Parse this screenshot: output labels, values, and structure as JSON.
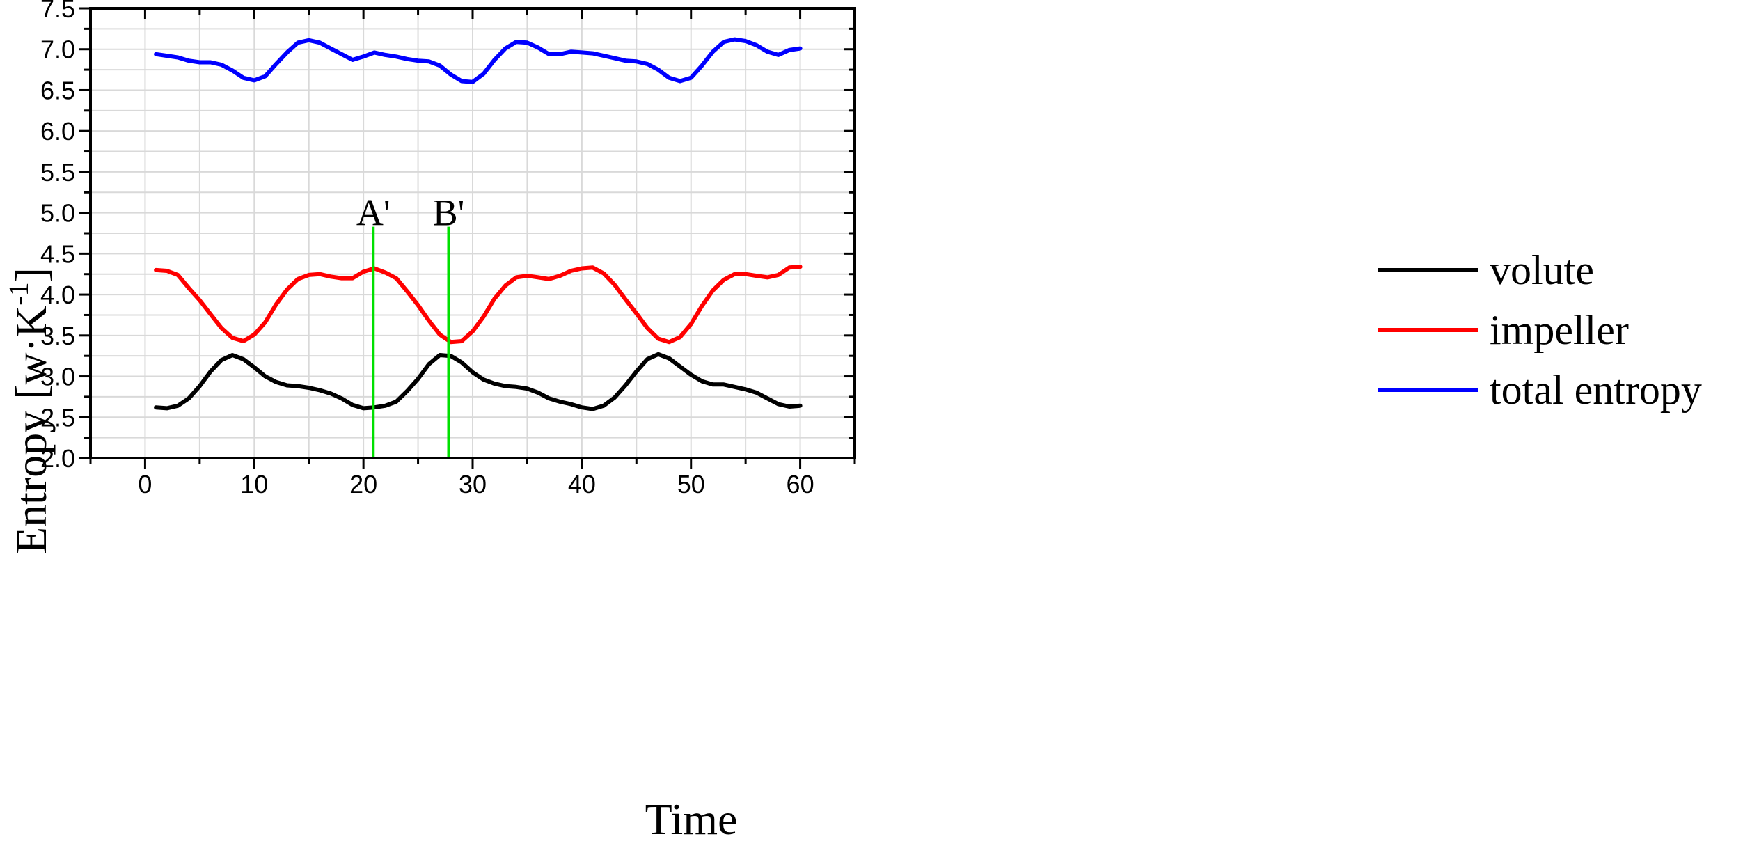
{
  "chart_data": {
    "type": "line",
    "title": "",
    "xlabel": "Time",
    "ylabel": "Entropy [w·K",
    "ylabel_sup": "-1",
    "ylabel_close": "]",
    "xlim": [
      -5,
      65
    ],
    "ylim": [
      2.0,
      7.5
    ],
    "xticks": [
      0,
      10,
      20,
      30,
      40,
      50,
      60
    ],
    "yticks": [
      2.0,
      2.5,
      3.0,
      3.5,
      4.0,
      4.5,
      5.0,
      5.5,
      6.0,
      6.5,
      7.0,
      7.5
    ],
    "xtick_labels": [
      "0",
      "10",
      "20",
      "30",
      "40",
      "50",
      "60"
    ],
    "ytick_labels": [
      "2.0",
      "2.5",
      "3.0",
      "3.5",
      "4.0",
      "4.5",
      "5.0",
      "5.5",
      "6.0",
      "6.5",
      "7.0",
      "7.5"
    ],
    "grid": true,
    "legend_position": "right",
    "x": [
      1,
      2,
      3,
      4,
      5,
      6,
      7,
      8,
      9,
      10,
      11,
      12,
      13,
      14,
      15,
      16,
      17,
      18,
      19,
      20,
      21,
      22,
      23,
      24,
      25,
      26,
      27,
      28,
      29,
      30,
      31,
      32,
      33,
      34,
      35,
      36,
      37,
      38,
      39,
      40,
      41,
      42,
      43,
      44,
      45,
      46,
      47,
      48,
      49,
      50,
      51,
      52,
      53,
      54,
      55,
      56,
      57,
      58,
      59,
      60
    ],
    "series": [
      {
        "name": "volute",
        "color": "#000000",
        "values": [
          2.62,
          2.61,
          2.64,
          2.73,
          2.88,
          3.06,
          3.2,
          3.26,
          3.21,
          3.11,
          3.0,
          2.93,
          2.89,
          2.88,
          2.86,
          2.83,
          2.79,
          2.73,
          2.65,
          2.61,
          2.62,
          2.64,
          2.69,
          2.82,
          2.97,
          3.15,
          3.26,
          3.25,
          3.17,
          3.05,
          2.96,
          2.91,
          2.88,
          2.87,
          2.85,
          2.8,
          2.73,
          2.69,
          2.66,
          2.62,
          2.6,
          2.64,
          2.74,
          2.89,
          3.06,
          3.21,
          3.27,
          3.22,
          3.12,
          3.02,
          2.94,
          2.9,
          2.9,
          2.87,
          2.84,
          2.8,
          2.73,
          2.66,
          2.63,
          2.64
        ]
      },
      {
        "name": "impeller",
        "color": "#ff0000",
        "values": [
          4.3,
          4.29,
          4.24,
          4.08,
          3.93,
          3.76,
          3.59,
          3.47,
          3.43,
          3.51,
          3.66,
          3.88,
          4.06,
          4.19,
          4.24,
          4.25,
          4.22,
          4.2,
          4.2,
          4.28,
          4.32,
          4.27,
          4.2,
          4.04,
          3.87,
          3.68,
          3.51,
          3.42,
          3.43,
          3.55,
          3.73,
          3.95,
          4.11,
          4.21,
          4.23,
          4.21,
          4.19,
          4.23,
          4.29,
          4.32,
          4.33,
          4.26,
          4.12,
          3.94,
          3.77,
          3.59,
          3.46,
          3.42,
          3.48,
          3.64,
          3.86,
          4.05,
          4.18,
          4.25,
          4.25,
          4.23,
          4.21,
          4.24,
          4.33,
          4.34
        ]
      },
      {
        "name": "total entropy",
        "color": "#0000ff",
        "values": [
          6.94,
          6.92,
          6.9,
          6.86,
          6.84,
          6.84,
          6.81,
          6.74,
          6.65,
          6.62,
          6.67,
          6.82,
          6.96,
          7.08,
          7.11,
          7.08,
          7.01,
          6.94,
          6.87,
          6.91,
          6.96,
          6.93,
          6.91,
          6.88,
          6.86,
          6.85,
          6.8,
          6.69,
          6.61,
          6.6,
          6.7,
          6.87,
          7.01,
          7.09,
          7.08,
          7.02,
          6.94,
          6.94,
          6.97,
          6.96,
          6.95,
          6.92,
          6.89,
          6.86,
          6.85,
          6.82,
          6.75,
          6.65,
          6.61,
          6.65,
          6.8,
          6.97,
          7.09,
          7.12,
          7.1,
          7.05,
          6.97,
          6.93,
          6.99,
          7.01
        ]
      }
    ],
    "markers": [
      {
        "label": "A'",
        "x": 20.9,
        "y_from": 2.0,
        "y_to": 4.83,
        "color": "#00e000"
      },
      {
        "label": "B'",
        "x": 27.8,
        "y_from": 2.0,
        "y_to": 4.83,
        "color": "#00e000"
      }
    ]
  }
}
